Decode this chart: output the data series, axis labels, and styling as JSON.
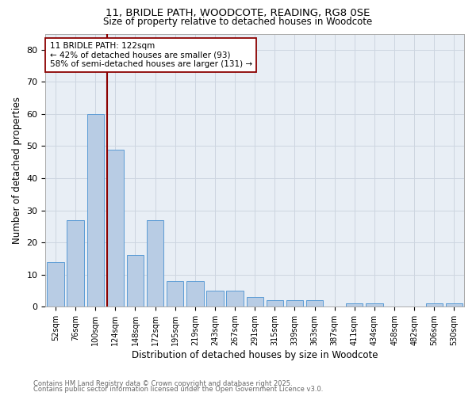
{
  "title1": "11, BRIDLE PATH, WOODCOTE, READING, RG8 0SE",
  "title2": "Size of property relative to detached houses in Woodcote",
  "xlabel": "Distribution of detached houses by size in Woodcote",
  "ylabel": "Number of detached properties",
  "categories": [
    "52sqm",
    "76sqm",
    "100sqm",
    "124sqm",
    "148sqm",
    "172sqm",
    "195sqm",
    "219sqm",
    "243sqm",
    "267sqm",
    "291sqm",
    "315sqm",
    "339sqm",
    "363sqm",
    "387sqm",
    "411sqm",
    "434sqm",
    "458sqm",
    "482sqm",
    "506sqm",
    "530sqm"
  ],
  "values": [
    14,
    27,
    60,
    49,
    16,
    27,
    8,
    8,
    5,
    5,
    3,
    2,
    2,
    2,
    0,
    1,
    1,
    0,
    0,
    1,
    1
  ],
  "bar_color": "#b8cce4",
  "bar_edge_color": "#5b9bd5",
  "vline_color": "#8b0000",
  "annotation_text": "11 BRIDLE PATH: 122sqm\n← 42% of detached houses are smaller (93)\n58% of semi-detached houses are larger (131) →",
  "annotation_box_color": "#ffffff",
  "annotation_box_edge": "#8b0000",
  "ylim": [
    0,
    85
  ],
  "yticks": [
    0,
    10,
    20,
    30,
    40,
    50,
    60,
    70,
    80
  ],
  "grid_color": "#cdd5e0",
  "bg_color": "#e8eef5",
  "footer1": "Contains HM Land Registry data © Crown copyright and database right 2025.",
  "footer2": "Contains public sector information licensed under the Open Government Licence v3.0."
}
